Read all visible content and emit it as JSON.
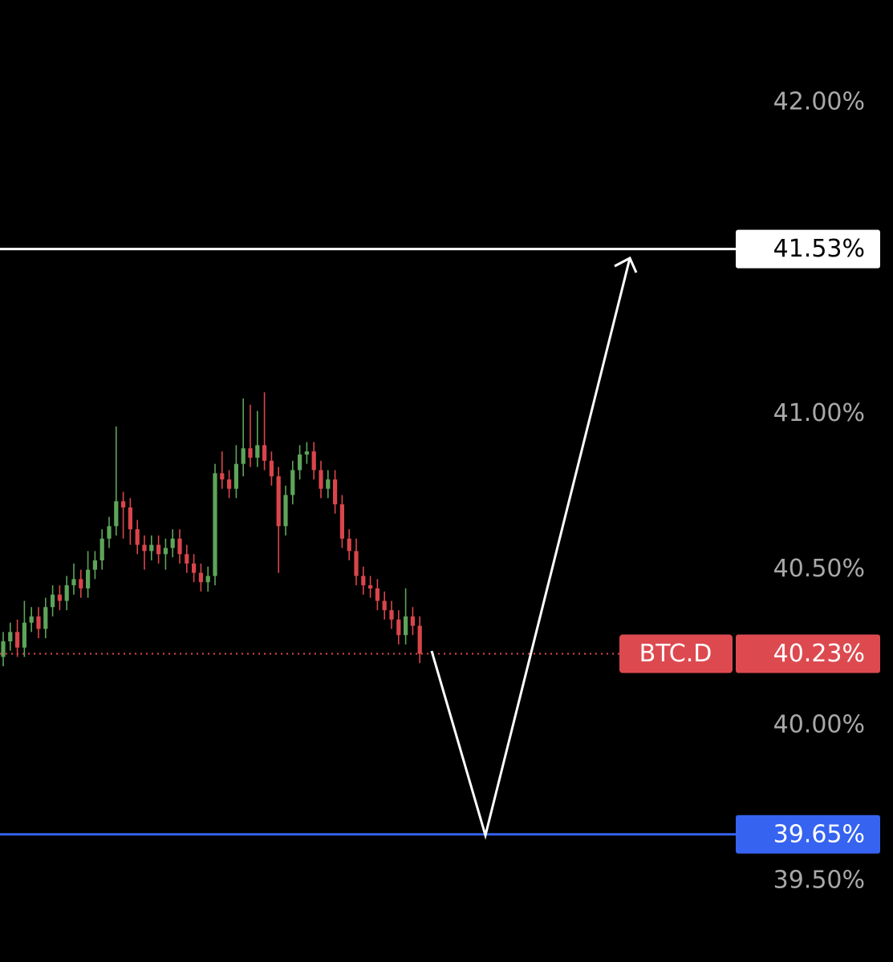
{
  "chart_data": {
    "type": "candlestick",
    "open": [
      40.22,
      40.27,
      40.3,
      40.25,
      40.33,
      40.35,
      40.31,
      40.38,
      40.42,
      40.4,
      40.45,
      40.47,
      40.44,
      40.5,
      40.53,
      40.6,
      40.64,
      40.72,
      40.7,
      40.63,
      40.58,
      40.56,
      40.58,
      40.55,
      40.57,
      40.6,
      40.55,
      40.52,
      40.49,
      40.46,
      40.48,
      40.81,
      40.79,
      40.76,
      40.84,
      40.89,
      40.86,
      40.9,
      40.85,
      40.8,
      40.64,
      40.74,
      40.82,
      40.87,
      40.88,
      40.82,
      40.76,
      40.79,
      40.71,
      40.6,
      40.56,
      40.48,
      40.45,
      40.44,
      40.4,
      40.37,
      40.34,
      40.29,
      40.35,
      40.32
    ],
    "high": [
      40.3,
      40.33,
      40.34,
      40.4,
      40.38,
      40.38,
      40.41,
      40.45,
      40.45,
      40.48,
      40.52,
      40.5,
      40.56,
      40.56,
      40.63,
      40.67,
      40.96,
      40.75,
      40.73,
      40.66,
      40.61,
      40.61,
      40.61,
      40.6,
      40.63,
      40.63,
      40.58,
      40.55,
      40.52,
      40.51,
      40.84,
      40.88,
      40.82,
      40.9,
      41.05,
      41.03,
      41.01,
      41.07,
      40.88,
      40.83,
      40.77,
      40.85,
      40.9,
      40.91,
      40.91,
      40.85,
      40.82,
      40.82,
      40.74,
      40.63,
      40.6,
      40.51,
      40.48,
      40.47,
      40.43,
      40.4,
      40.37,
      40.44,
      40.38,
      40.35
    ],
    "low": [
      40.19,
      40.24,
      40.22,
      40.22,
      40.3,
      40.28,
      40.28,
      40.35,
      40.37,
      40.37,
      40.42,
      40.41,
      40.41,
      40.47,
      40.5,
      40.57,
      40.61,
      40.6,
      40.58,
      40.55,
      40.5,
      40.53,
      40.52,
      40.5,
      40.54,
      40.52,
      40.49,
      40.46,
      40.43,
      40.43,
      40.45,
      40.76,
      40.73,
      40.73,
      40.8,
      40.83,
      40.83,
      40.82,
      40.77,
      40.49,
      40.61,
      40.71,
      40.79,
      40.84,
      40.79,
      40.73,
      40.73,
      40.68,
      40.57,
      40.53,
      40.45,
      40.42,
      40.41,
      40.37,
      40.34,
      40.31,
      40.26,
      40.26,
      40.29,
      40.2
    ],
    "close": [
      40.27,
      40.3,
      40.25,
      40.33,
      40.35,
      40.31,
      40.38,
      40.42,
      40.4,
      40.45,
      40.47,
      40.44,
      40.5,
      40.53,
      40.6,
      40.64,
      40.72,
      40.7,
      40.63,
      40.58,
      40.56,
      40.58,
      40.55,
      40.57,
      40.6,
      40.55,
      40.52,
      40.49,
      40.46,
      40.48,
      40.81,
      40.79,
      40.76,
      40.84,
      40.89,
      40.86,
      40.9,
      40.85,
      40.8,
      40.64,
      40.74,
      40.82,
      40.87,
      40.88,
      40.82,
      40.76,
      40.79,
      40.71,
      40.6,
      40.56,
      40.48,
      40.45,
      40.44,
      40.4,
      40.37,
      40.34,
      40.29,
      40.35,
      40.32,
      40.23
    ],
    "up_color": "#5ea45a",
    "down_color": "#d9454b",
    "ylim": [
      39.24,
      42.33
    ],
    "yticks": [
      {
        "value": 42,
        "label": "42.00%"
      },
      {
        "value": 41,
        "label": "41.00%"
      },
      {
        "value": 40.5,
        "label": "40.50%"
      },
      {
        "value": 40,
        "label": "40.00%"
      },
      {
        "value": 39.5,
        "label": "39.50%"
      }
    ],
    "levels": [
      {
        "value": 41.53,
        "label": "41.53%",
        "color": "#ffffff",
        "text_color": "#000000"
      },
      {
        "value": 39.65,
        "label": "39.65%",
        "color": "#3663f0",
        "text_color": "#ffffff"
      }
    ],
    "last_price": {
      "name": "BTC.D",
      "value": 40.23,
      "label": "40.23%",
      "color": "#dc4a50"
    }
  }
}
